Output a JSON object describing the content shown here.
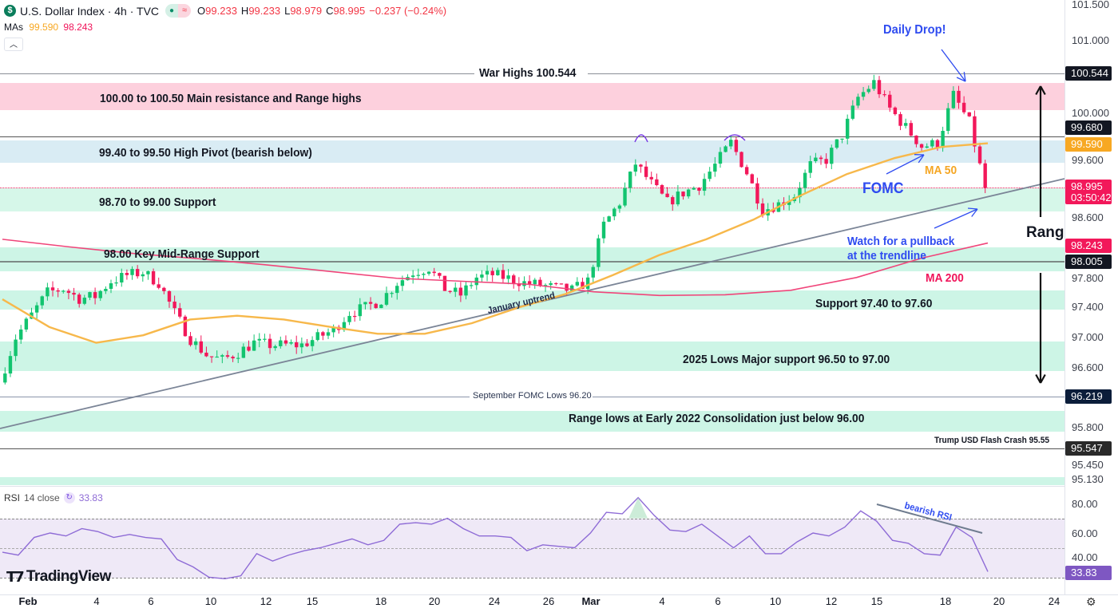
{
  "header": {
    "symbol_icon": "dollar-icon",
    "title": "U.S. Dollar Index · 4h · TVC",
    "open_label": "O",
    "open": "99.233",
    "high_label": "H",
    "high": "99.233",
    "low_label": "L",
    "low": "98.979",
    "close_label": "C",
    "close": "98.995",
    "change": "−0.237 (−0.24%)",
    "mas_label": "MAs",
    "ma50": "99.590",
    "ma200": "98.243"
  },
  "annotations": {
    "war_highs": "War Highs 100.544",
    "resistance": "100.00 to 100.50 Main resistance and Range highs",
    "high_pivot": "99.40 to 99.50 High Pivot (bearish below)",
    "support_987": "98.70 to 99.00 Support",
    "mid_range": "98.00 Key Mid-Range Support",
    "support_974": "Support 97.40 to 97.60",
    "lows_2025": "2025 Lows Major support 96.50 to 97.00",
    "sept_fomc": "September FOMC Lows 96.20",
    "range_lows": "Range lows at Early 2022 Consolidation just below 96.00",
    "flash_crash": "Trump USD Flash Crash 95.55",
    "jan_uptrend": "January uptrend",
    "daily_drop": "Daily Drop!",
    "fomc": "FOMC",
    "ma50": "MA 50",
    "watch_1": "Watch for a pullback",
    "watch_2": "at the trendline",
    "ma200": "MA 200",
    "range": "Rang",
    "bearish_rsi": "bearish RSI"
  },
  "price_axis": {
    "ticks": [
      "101.500",
      "101.000",
      "100.000",
      "99.600",
      "98.600",
      "97.800",
      "97.400",
      "97.000",
      "96.600",
      "95.800",
      "95.450",
      "95.130"
    ],
    "tags": {
      "war_high": "100.544",
      "pivot": "99.680",
      "ma50": "99.590",
      "last": "98.995",
      "countdown": "03:50:42",
      "ma200": "98.243",
      "mid": "98.005",
      "sept": "96.219",
      "crash": "95.547"
    }
  },
  "rsi": {
    "label": "RSI",
    "params": "14 close",
    "value": "33.83",
    "ticks": [
      "80.00",
      "60.00",
      "40.00"
    ]
  },
  "time_axis": [
    "Feb",
    "4",
    "6",
    "10",
    "12",
    "15",
    "18",
    "20",
    "24",
    "26",
    "Mar",
    "4",
    "6",
    "10",
    "12",
    "15",
    "18",
    "20",
    "24"
  ],
  "brand": "TradingView",
  "colors": {
    "up": "#12c46f",
    "down": "#f2185a",
    "ma50": "#f7b84b",
    "ma200": "#f0457a",
    "rsi": "#8e6bd6",
    "annot_blue": "#2f4cf0"
  },
  "chart_data": {
    "type": "candlestick",
    "approx_closes": [
      96.4,
      97.0,
      97.3,
      97.6,
      97.65,
      97.52,
      97.55,
      97.75,
      97.83,
      97.87,
      97.73,
      97.33,
      96.98,
      96.77,
      96.7,
      96.8,
      96.93,
      96.9,
      96.9,
      96.9,
      97.0,
      97.1,
      97.33,
      97.4,
      97.5,
      97.73,
      97.87,
      97.93,
      97.65,
      97.57,
      97.8,
      97.84,
      97.79,
      97.73,
      97.7,
      97.66,
      97.63,
      97.75,
      98.5,
      98.8,
      99.32,
      99.05,
      98.8,
      98.93,
      99.03,
      99.3,
      99.6,
      99.2,
      98.7,
      98.78,
      98.9,
      99.3,
      99.37,
      99.7,
      100.2,
      100.4,
      100.05,
      99.8,
      99.55,
      99.59,
      100.23,
      99.87,
      98.995
    ],
    "ma50": [
      97.51,
      97.14,
      96.93,
      97.03,
      97.24,
      97.29,
      97.24,
      97.14,
      97.05,
      97.05,
      97.19,
      97.4,
      97.58,
      97.83,
      98.1,
      98.31,
      98.57,
      98.89,
      99.18,
      99.39,
      99.54,
      99.59
    ],
    "ma200": [
      98.31,
      98.21,
      98.12,
      98.05,
      97.97,
      97.88,
      97.79,
      97.75,
      97.71,
      97.61,
      97.56,
      97.57,
      97.63,
      97.8,
      98.06,
      98.26
    ],
    "rsi": [
      47,
      45,
      57,
      60,
      58,
      63,
      61,
      57,
      59,
      57,
      56,
      42,
      37,
      30,
      29,
      31,
      46,
      41,
      45,
      48,
      50,
      53,
      56,
      52,
      55,
      66,
      67,
      66,
      70,
      63,
      58,
      58,
      57,
      48,
      52,
      51,
      50,
      60,
      74,
      73,
      84,
      72,
      62,
      61,
      66,
      58,
      50,
      58,
      46,
      46,
      54,
      60,
      58,
      64,
      75,
      68,
      55,
      53,
      46,
      45,
      64,
      57,
      33.83
    ],
    "ylim": [
      95.13,
      101.5
    ],
    "rsi_levels": [
      70,
      50,
      30
    ]
  }
}
